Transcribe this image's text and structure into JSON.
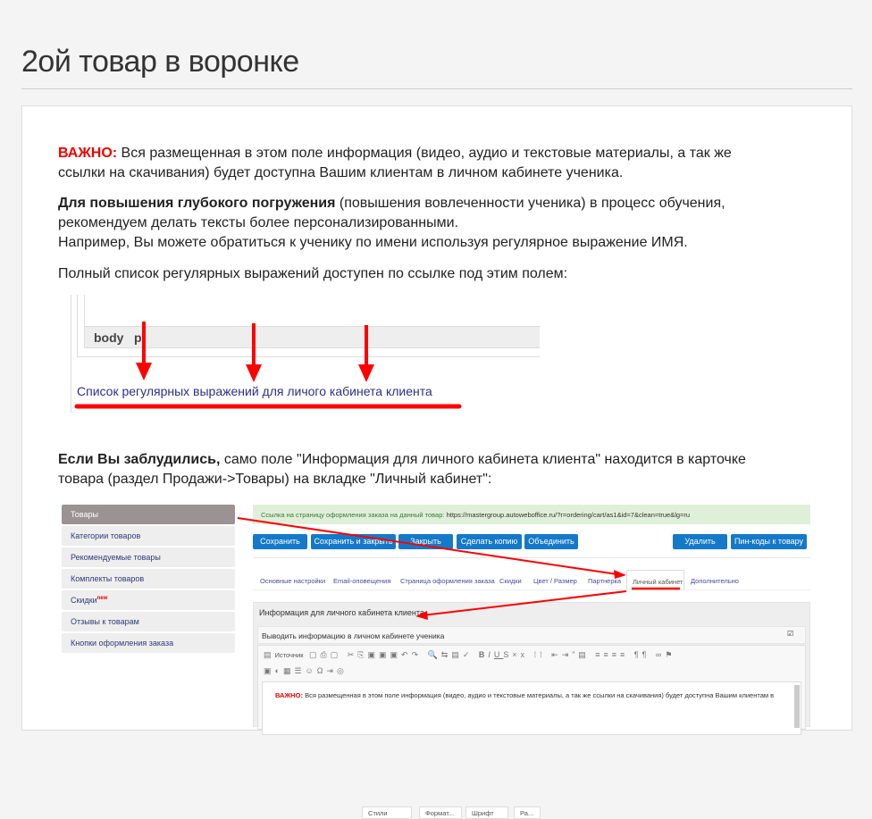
{
  "page": {
    "title": "2ой товар в воронке"
  },
  "content": {
    "p1_label": "ВАЖНО:",
    "p1_text": " Вся размещенная в этом поле информация (видео, аудио и текстовые материалы, а так же ссылки на скачивания) будет доступна Вашим клиентам в личном кабинете ученика.",
    "p2_bold": "Для повышения глубокого погружения",
    "p2_text": " (повышения вовлеченности ученика) в процесс обучения, рекомендуем делать тексты более персонализированными.",
    "p2_line2": "Например, Вы можете обратиться к ученику по имени используя регулярное выражение ИМЯ.",
    "p3": "Полный список регулярных выражений доступен по ссылке под этим полем:",
    "p4_bold": "Если Вы заблудились,",
    "p4_text": " само поле \"Информация для личного кабинета клиента\" находится в карточке товара (раздел Продажи->Товары) на вкладке \"Личный кабинет\":"
  },
  "shot1": {
    "path": [
      "body",
      "p"
    ],
    "link": "Список регулярных выражений для личого кабинета клиента"
  },
  "shot2": {
    "sidebar": [
      {
        "label": "Товары"
      },
      {
        "label": "Категории товаров"
      },
      {
        "label": "Рекомендуемые товары"
      },
      {
        "label": "Комплекты товаров"
      },
      {
        "label": "Скидки",
        "badge": "new"
      },
      {
        "label": "Отзывы к товарам"
      },
      {
        "label": "Кнопки оформления заказа"
      }
    ],
    "order_link_label": "Ссылка на страницу оформления заказа на данный товар:",
    "order_link_url": "https://mastergroup.autoweboffice.ru/?r=ordering/cart/as1&id=7&clean=true&lg=ru",
    "buttons": [
      "Сохранить",
      "Сохранить и закрыть",
      "Закрыть",
      "Сделать копию",
      "Объединить",
      "Удалить",
      "Пин-коды к товару"
    ],
    "tabs": [
      "Основные настройки",
      "Email-оповещения",
      "Страница оформления заказа",
      "Скидки",
      "Цвет / Размер",
      "Партнерка",
      "Личный кабинет",
      "Дополнительно"
    ],
    "section_title": "Информация для личного кабинета клиента",
    "show_label": "Выводить информацию в личном кабинете ученика",
    "show_checked": true,
    "toolbar": {
      "source": "Источник",
      "styles": "Стили",
      "format": "Формат...",
      "font": "Шрифт",
      "size": "Ра..."
    },
    "editor_label": "ВАЖНО:",
    "editor_text": " Вся размещенная в этом поле информация (видео, аудио и текстовые материалы, а так же ссылки на скачивания) будет доступна Вашим клиентам в"
  },
  "colors": {
    "accent_red": "#e00000",
    "button_blue": "#1479c9",
    "link": "#2e2e8a"
  }
}
